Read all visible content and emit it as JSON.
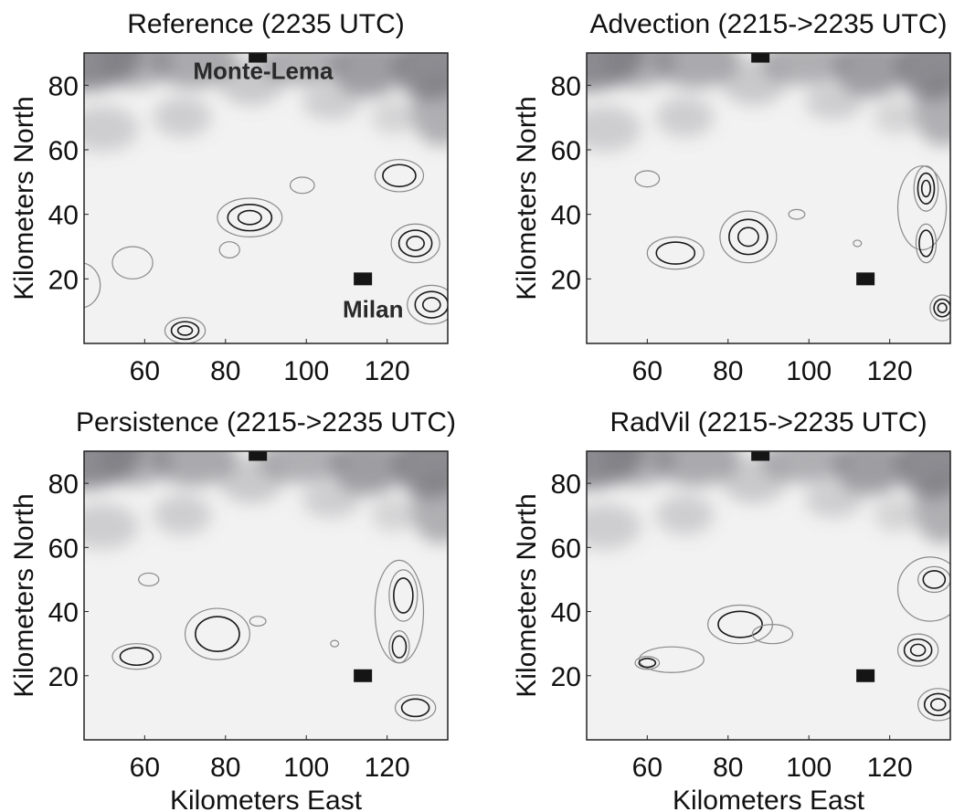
{
  "chart_data": [
    {
      "type": "contour",
      "title": "Reference (2235 UTC)",
      "xlabel": "",
      "ylabel": "Kilometers North",
      "xlim": [
        45,
        135
      ],
      "ylim": [
        0,
        90
      ],
      "xticks": [
        60,
        80,
        100,
        120
      ],
      "yticks": [
        20,
        40,
        60,
        80
      ],
      "grid": false,
      "annotations": [
        {
          "text": "Monte-Lema",
          "x": 72,
          "y": 82
        },
        {
          "text": "Milan",
          "x": 109,
          "y": 8
        }
      ],
      "markers": [
        {
          "label": "Monte-Lema",
          "x": 88,
          "y": 89
        },
        {
          "label": "Milan",
          "x": 114,
          "y": 20
        }
      ],
      "cells": [
        {
          "x": 86,
          "y": 39,
          "rx": 8,
          "ry": 6,
          "levels": 3
        },
        {
          "x": 81,
          "y": 29,
          "rx": 2.5,
          "ry": 2.5,
          "levels": 1
        },
        {
          "x": 123,
          "y": 52,
          "rx": 6,
          "ry": 5,
          "levels": 2
        },
        {
          "x": 127,
          "y": 31,
          "rx": 6,
          "ry": 6,
          "levels": 3
        },
        {
          "x": 131,
          "y": 12,
          "rx": 6,
          "ry": 6,
          "levels": 3
        },
        {
          "x": 70,
          "y": 4,
          "rx": 5,
          "ry": 4,
          "levels": 3
        },
        {
          "x": 57,
          "y": 25,
          "rx": 5,
          "ry": 5,
          "levels": 1
        },
        {
          "x": 44,
          "y": 18,
          "rx": 5,
          "ry": 7,
          "levels": 1
        },
        {
          "x": 99,
          "y": 49,
          "rx": 3,
          "ry": 2.5,
          "levels": 1
        }
      ]
    },
    {
      "type": "contour",
      "title": "Advection (2215->2235 UTC)",
      "xlabel": "",
      "ylabel": "Kilometers North",
      "xlim": [
        45,
        135
      ],
      "ylim": [
        0,
        90
      ],
      "xticks": [
        60,
        80,
        100,
        120
      ],
      "yticks": [
        20,
        40,
        60,
        80
      ],
      "grid": false,
      "annotations": [],
      "markers": [
        {
          "label": "Monte-Lema",
          "x": 88,
          "y": 89
        },
        {
          "label": "Milan",
          "x": 114,
          "y": 20
        }
      ],
      "cells": [
        {
          "x": 85,
          "y": 33,
          "rx": 7,
          "ry": 8,
          "levels": 3
        },
        {
          "x": 67,
          "y": 28,
          "rx": 7,
          "ry": 5,
          "levels": 2
        },
        {
          "x": 60,
          "y": 51,
          "rx": 3,
          "ry": 2.5,
          "levels": 1
        },
        {
          "x": 97,
          "y": 40,
          "rx": 2,
          "ry": 1.5,
          "levels": 1
        },
        {
          "x": 112,
          "y": 31,
          "rx": 1,
          "ry": 1,
          "levels": 1
        },
        {
          "x": 128,
          "y": 42,
          "rx": 6,
          "ry": 13,
          "levels": 1
        },
        {
          "x": 129,
          "y": 48,
          "rx": 3,
          "ry": 7,
          "levels": 3
        },
        {
          "x": 129,
          "y": 31,
          "rx": 2.5,
          "ry": 6,
          "levels": 2
        },
        {
          "x": 133,
          "y": 11,
          "rx": 3,
          "ry": 4,
          "levels": 3
        }
      ]
    },
    {
      "type": "contour",
      "title": "Persistence (2215->2235 UTC)",
      "xlabel": "Kilometers East",
      "ylabel": "Kilometers North",
      "xlim": [
        45,
        135
      ],
      "ylim": [
        0,
        90
      ],
      "xticks": [
        60,
        80,
        100,
        120
      ],
      "yticks": [
        20,
        40,
        60,
        80
      ],
      "grid": false,
      "annotations": [],
      "markers": [
        {
          "label": "Monte-Lema",
          "x": 88,
          "y": 89
        },
        {
          "label": "Milan",
          "x": 114,
          "y": 20
        }
      ],
      "cells": [
        {
          "x": 78,
          "y": 33,
          "rx": 8,
          "ry": 8,
          "levels": 2
        },
        {
          "x": 58,
          "y": 26,
          "rx": 6,
          "ry": 4,
          "levels": 2
        },
        {
          "x": 61,
          "y": 50,
          "rx": 2.5,
          "ry": 2,
          "levels": 1
        },
        {
          "x": 88,
          "y": 37,
          "rx": 2,
          "ry": 1.5,
          "levels": 1
        },
        {
          "x": 107,
          "y": 30,
          "rx": 1,
          "ry": 1,
          "levels": 1
        },
        {
          "x": 123,
          "y": 40,
          "rx": 6,
          "ry": 16,
          "levels": 1
        },
        {
          "x": 124,
          "y": 45,
          "rx": 3.5,
          "ry": 8,
          "levels": 2
        },
        {
          "x": 123,
          "y": 29,
          "rx": 2.5,
          "ry": 5,
          "levels": 2
        },
        {
          "x": 127,
          "y": 10,
          "rx": 5,
          "ry": 4,
          "levels": 2
        }
      ]
    },
    {
      "type": "contour",
      "title": "RadVil (2215->2235 UTC)",
      "xlabel": "Kilometers East",
      "ylabel": "Kilometers North",
      "xlim": [
        45,
        135
      ],
      "ylim": [
        0,
        90
      ],
      "xticks": [
        60,
        80,
        100,
        120
      ],
      "yticks": [
        20,
        40,
        60,
        80
      ],
      "grid": false,
      "annotations": [],
      "markers": [
        {
          "label": "Monte-Lema",
          "x": 88,
          "y": 89
        },
        {
          "label": "Milan",
          "x": 114,
          "y": 20
        }
      ],
      "cells": [
        {
          "x": 83,
          "y": 36,
          "rx": 8,
          "ry": 6,
          "levels": 2
        },
        {
          "x": 66,
          "y": 25,
          "rx": 8,
          "ry": 4,
          "levels": 1
        },
        {
          "x": 60,
          "y": 24,
          "rx": 3,
          "ry": 2,
          "levels": 2
        },
        {
          "x": 91,
          "y": 33,
          "rx": 5,
          "ry": 3,
          "levels": 1
        },
        {
          "x": 130,
          "y": 47,
          "rx": 8,
          "ry": 10,
          "levels": 1
        },
        {
          "x": 131,
          "y": 50,
          "rx": 4,
          "ry": 4,
          "levels": 2
        },
        {
          "x": 127,
          "y": 28,
          "rx": 5,
          "ry": 5,
          "levels": 3
        },
        {
          "x": 132,
          "y": 11,
          "rx": 5,
          "ry": 5,
          "levels": 3
        }
      ]
    }
  ],
  "colors": {
    "background": "#ffffff",
    "terrain_dark": "#7a7a80",
    "terrain_light": "#f2f2f2",
    "contour_outer": "#8a8a8a",
    "contour_inner": "#1a1a1a",
    "marker": "#151515",
    "text": "#111111"
  }
}
